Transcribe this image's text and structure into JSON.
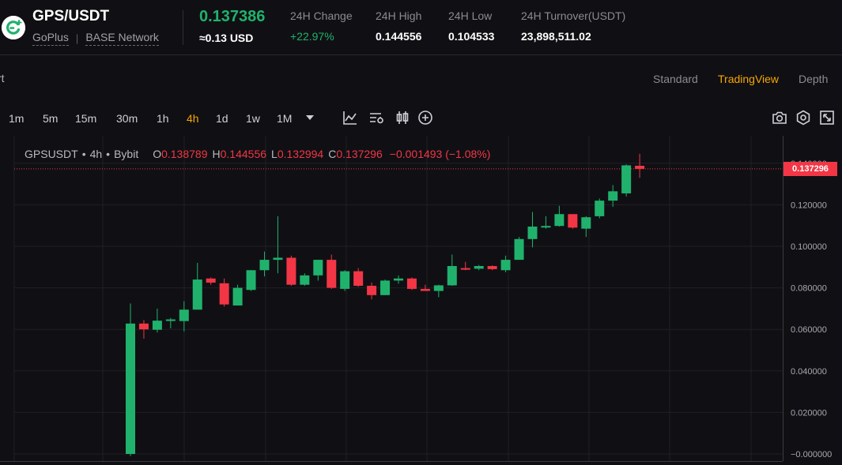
{
  "header": {
    "pair": "GPS/USDT",
    "tags": [
      "GoPlus",
      "BASE Network"
    ],
    "tag_separator": "|",
    "last_price": "0.137386",
    "last_price_usd": "≈0.13 USD",
    "stats": [
      {
        "label": "24H Change",
        "value": "+22.97%",
        "trend": "up"
      },
      {
        "label": "24H High",
        "value": "0.144556"
      },
      {
        "label": "24H Low",
        "value": "0.104533"
      },
      {
        "label": "24H Turnover(USDT)",
        "value": "23,898,511.02"
      }
    ],
    "colors": {
      "up": "#20b26c",
      "down": "#f23645",
      "accent": "#f7a600"
    }
  },
  "view_tabs": {
    "cut_label": "rt",
    "items": [
      {
        "label": "Standard",
        "active": false
      },
      {
        "label": "TradingView",
        "active": true
      },
      {
        "label": "Depth",
        "active": false
      }
    ]
  },
  "toolbar": {
    "timeframes": [
      {
        "label": "1m",
        "active": false
      },
      {
        "label": "5m",
        "active": false
      },
      {
        "label": "15m",
        "active": false
      },
      {
        "label": "30m",
        "active": false
      },
      {
        "label": "1h",
        "active": false
      },
      {
        "label": "4h",
        "active": true
      },
      {
        "label": "1d",
        "active": false
      },
      {
        "label": "1w",
        "active": false
      },
      {
        "label": "1M",
        "active": false
      }
    ],
    "tools": [
      "chevron-down-icon",
      "indicators-icon",
      "chart-settings-icon",
      "candle-type-icon",
      "add-icon",
      "camera-icon",
      "settings-icon",
      "fullscreen-icon"
    ]
  },
  "legend": {
    "symbol": "GPSUSDT",
    "dot": "•",
    "interval": "4h",
    "exchange": "Bybit",
    "open_label": "O",
    "open": "0.138789",
    "high_label": "H",
    "high": "0.144556",
    "low_label": "L",
    "low": "0.132994",
    "close_label": "C",
    "close": "0.137296",
    "change": "−0.001493 (−1.08%)"
  },
  "current_price_tag": "0.137296",
  "chart_data": {
    "type": "candlestick",
    "ylim": [
      -0.002,
      0.15
    ],
    "y_ticks": [
      "0.140000",
      "0.120000",
      "0.100000",
      "0.080000",
      "0.060000",
      "0.040000",
      "0.020000",
      "−0.000000"
    ],
    "y_tick_values": [
      0.14,
      0.12,
      0.1,
      0.08,
      0.06,
      0.04,
      0.02,
      0
    ],
    "current_price": 0.137296,
    "candles": [
      {
        "o": 0.0,
        "h": 0.0725,
        "l": -0.001,
        "c": 0.0628
      },
      {
        "o": 0.0628,
        "h": 0.0645,
        "l": 0.0555,
        "c": 0.06
      },
      {
        "o": 0.0598,
        "h": 0.07,
        "l": 0.0585,
        "c": 0.0642
      },
      {
        "o": 0.0642,
        "h": 0.0655,
        "l": 0.0605,
        "c": 0.0648
      },
      {
        "o": 0.064,
        "h": 0.0735,
        "l": 0.059,
        "c": 0.0695
      },
      {
        "o": 0.0695,
        "h": 0.092,
        "l": 0.0695,
        "c": 0.084
      },
      {
        "o": 0.0845,
        "h": 0.085,
        "l": 0.0815,
        "c": 0.0825
      },
      {
        "o": 0.0822,
        "h": 0.0845,
        "l": 0.071,
        "c": 0.072
      },
      {
        "o": 0.0715,
        "h": 0.0815,
        "l": 0.0715,
        "c": 0.08
      },
      {
        "o": 0.079,
        "h": 0.0885,
        "l": 0.0785,
        "c": 0.0885
      },
      {
        "o": 0.0885,
        "h": 0.0975,
        "l": 0.0855,
        "c": 0.0935
      },
      {
        "o": 0.0935,
        "h": 0.1145,
        "l": 0.087,
        "c": 0.0945
      },
      {
        "o": 0.0945,
        "h": 0.0955,
        "l": 0.081,
        "c": 0.0815
      },
      {
        "o": 0.0815,
        "h": 0.087,
        "l": 0.081,
        "c": 0.086
      },
      {
        "o": 0.086,
        "h": 0.0935,
        "l": 0.0835,
        "c": 0.0935
      },
      {
        "o": 0.0935,
        "h": 0.096,
        "l": 0.0795,
        "c": 0.08
      },
      {
        "o": 0.0795,
        "h": 0.0885,
        "l": 0.0785,
        "c": 0.088
      },
      {
        "o": 0.088,
        "h": 0.0895,
        "l": 0.0805,
        "c": 0.081
      },
      {
        "o": 0.081,
        "h": 0.0825,
        "l": 0.0745,
        "c": 0.0765
      },
      {
        "o": 0.0765,
        "h": 0.084,
        "l": 0.0765,
        "c": 0.0835
      },
      {
        "o": 0.0835,
        "h": 0.086,
        "l": 0.082,
        "c": 0.0845
      },
      {
        "o": 0.0845,
        "h": 0.085,
        "l": 0.079,
        "c": 0.0795
      },
      {
        "o": 0.0795,
        "h": 0.0815,
        "l": 0.0785,
        "c": 0.0785
      },
      {
        "o": 0.0785,
        "h": 0.0815,
        "l": 0.0755,
        "c": 0.0812
      },
      {
        "o": 0.0812,
        "h": 0.096,
        "l": 0.081,
        "c": 0.0905
      },
      {
        "o": 0.0895,
        "h": 0.0925,
        "l": 0.0885,
        "c": 0.089
      },
      {
        "o": 0.0892,
        "h": 0.091,
        "l": 0.0885,
        "c": 0.0905
      },
      {
        "o": 0.0905,
        "h": 0.0908,
        "l": 0.0885,
        "c": 0.089
      },
      {
        "o": 0.0885,
        "h": 0.0955,
        "l": 0.0875,
        "c": 0.0935
      },
      {
        "o": 0.0935,
        "h": 0.1045,
        "l": 0.0935,
        "c": 0.1035
      },
      {
        "o": 0.1035,
        "h": 0.1165,
        "l": 0.0995,
        "c": 0.1095
      },
      {
        "o": 0.1095,
        "h": 0.1145,
        "l": 0.1085,
        "c": 0.1098
      },
      {
        "o": 0.1098,
        "h": 0.1195,
        "l": 0.1095,
        "c": 0.1155
      },
      {
        "o": 0.1155,
        "h": 0.1155,
        "l": 0.1085,
        "c": 0.109
      },
      {
        "o": 0.1085,
        "h": 0.1145,
        "l": 0.1045,
        "c": 0.114
      },
      {
        "o": 0.1145,
        "h": 0.123,
        "l": 0.1135,
        "c": 0.122
      },
      {
        "o": 0.122,
        "h": 0.1295,
        "l": 0.119,
        "c": 0.1265
      },
      {
        "o": 0.1255,
        "h": 0.1395,
        "l": 0.124,
        "c": 0.139
      },
      {
        "o": 0.138789,
        "h": 0.144556,
        "l": 0.132994,
        "c": 0.137296
      }
    ]
  }
}
